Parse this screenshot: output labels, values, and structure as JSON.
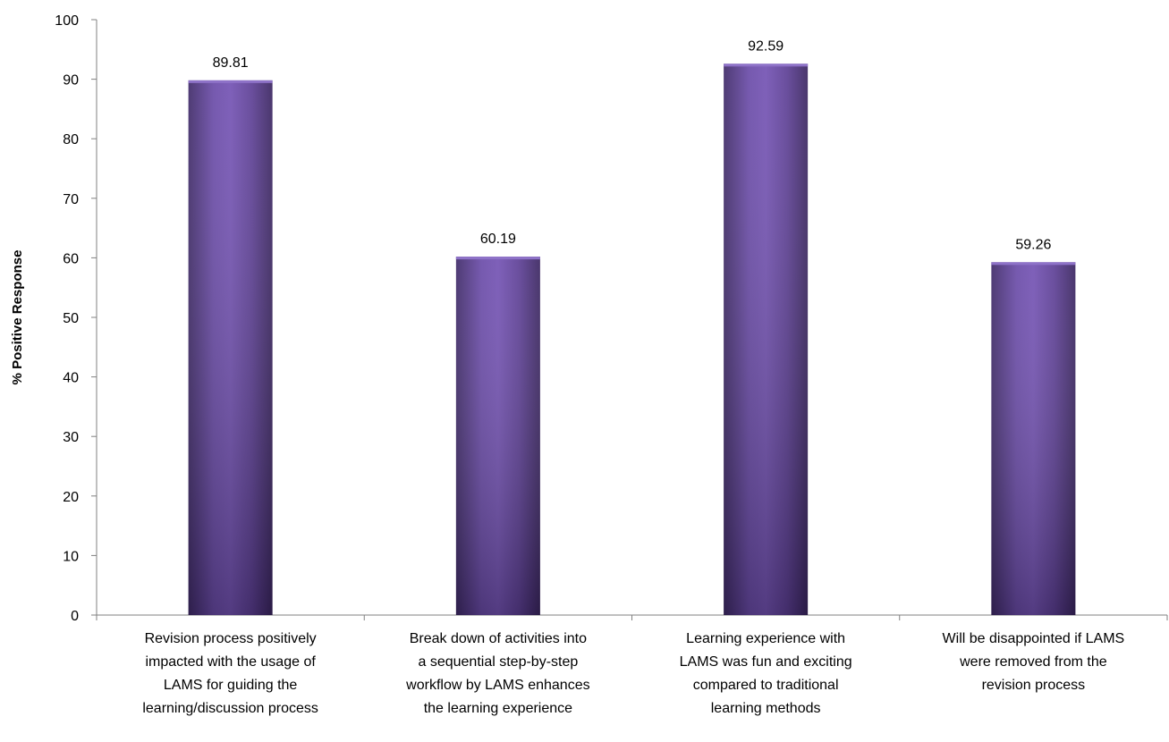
{
  "chart_data": {
    "type": "bar",
    "title": "",
    "xlabel": "",
    "ylabel": "% Positive Response",
    "ylim": [
      0,
      100
    ],
    "yticks": [
      0,
      10,
      20,
      30,
      40,
      50,
      60,
      70,
      80,
      90,
      100
    ],
    "grid": false,
    "categories": [
      "Revision process positively impacted with the usage of LAMS for guiding the learning/discussion process",
      "Break down of activities into a sequential step-by-step workflow by LAMS enhances the learning experience",
      "Learning experience with LAMS was fun and exciting compared to traditional learning methods",
      "Will be disappointed if LAMS were removed from the revision process"
    ],
    "category_lines": [
      [
        "Revision process positively",
        "impacted with the usage of",
        "LAMS for guiding the",
        "learning/discussion process"
      ],
      [
        "Break down of activities into",
        "a sequential step-by-step",
        "workflow by LAMS enhances",
        "the learning experience"
      ],
      [
        "Learning experience with",
        "LAMS was fun and exciting",
        "compared to traditional",
        "learning methods"
      ],
      [
        "Will be disappointed if LAMS",
        "were removed from the",
        "revision process"
      ]
    ],
    "values": [
      89.81,
      60.19,
      92.59,
      59.26
    ],
    "data_labels": [
      "89.81",
      "60.19",
      "92.59",
      "59.26"
    ],
    "bar_color": "#5b3d8f"
  }
}
